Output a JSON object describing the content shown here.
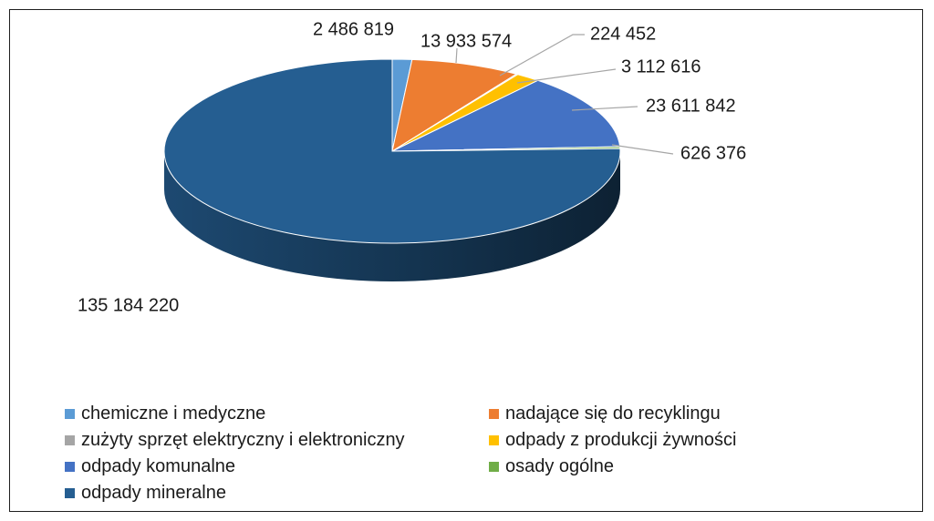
{
  "chart_data": {
    "type": "pie",
    "title": "",
    "variant": "3d",
    "legend_position": "bottom",
    "categories": [
      "chemiczne i medyczne",
      "nadające się do recyklingu",
      "zużyty sprzęt elektryczny i elektroniczny",
      "odpady z produkcji żywności",
      "odpady komunalne",
      "osady ogólne",
      "odpady mineralne"
    ],
    "values": [
      2486819,
      13933574,
      224452,
      3112616,
      23611842,
      626376,
      135184220
    ],
    "value_labels": [
      "2 486 819",
      "13 933 574",
      "224 452",
      "3 112 616",
      "23 611 842",
      "626 376",
      "135 184 220"
    ],
    "colors": [
      "#5b9bd5",
      "#ed7d31",
      "#a5a5a5",
      "#ffc000",
      "#4472c4",
      "#70ad47",
      "#255e91"
    ]
  }
}
